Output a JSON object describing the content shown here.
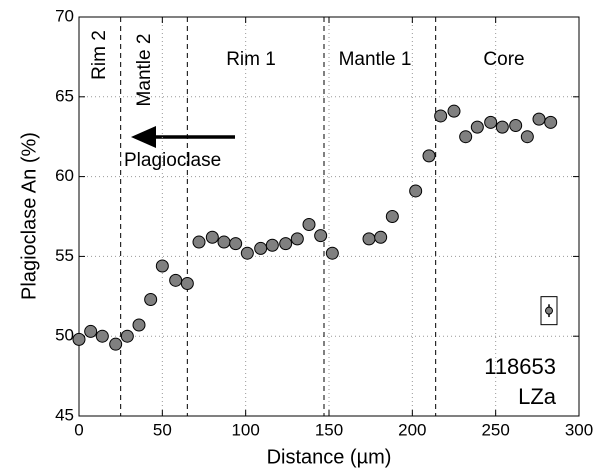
{
  "chart_data": {
    "type": "scatter",
    "xlabel": "Distance (µm)",
    "ylabel": "Plagioclase An (%)",
    "xlim": [
      0,
      300
    ],
    "ylim": [
      45,
      70
    ],
    "xticks": [
      0,
      50,
      100,
      150,
      200,
      250,
      300
    ],
    "yticks": [
      45,
      50,
      55,
      60,
      65,
      70
    ],
    "grid": true,
    "series": [
      {
        "color": "#808080",
        "x": [
          0,
          7,
          14,
          22,
          29,
          36,
          43,
          50,
          58,
          65,
          72,
          80,
          87,
          94,
          101,
          109,
          116,
          124,
          131,
          138,
          145,
          152,
          174,
          181,
          188,
          202,
          210,
          217,
          225,
          232,
          239,
          247,
          254,
          262,
          269,
          276,
          283
        ],
        "values": [
          49.8,
          50.3,
          50.0,
          49.5,
          50.0,
          50.7,
          52.3,
          54.4,
          53.5,
          53.3,
          55.9,
          56.2,
          55.9,
          55.8,
          55.2,
          55.5,
          55.7,
          55.8,
          56.1,
          57.0,
          56.3,
          55.2,
          56.1,
          56.2,
          57.5,
          59.1,
          61.3,
          63.8,
          64.1,
          62.5,
          63.1,
          63.4,
          63.1,
          63.2,
          62.5,
          63.6,
          63.4
        ]
      }
    ],
    "dividers": [
      25,
      65,
      147,
      214
    ],
    "regions": [
      "Rim 2",
      "Mantle 2",
      "Rim 1",
      "Mantle 1",
      "Core"
    ],
    "arrow_label": "Plagioclase",
    "sample": "118653",
    "unit": "LZa",
    "error_bar": {
      "x": 282,
      "y": 51.6,
      "error": 0.4
    }
  }
}
